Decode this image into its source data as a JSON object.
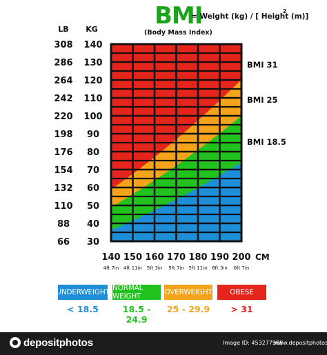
{
  "chart_data": {
    "type": "heatmap",
    "title": "BMI",
    "formula": "= Weight (kg) / [ Height (m)]",
    "formula_exponent": "2",
    "subtitle": "(Body Mass Index)",
    "lb_header": "LB",
    "kg_header": "KG",
    "lb_ticks": [
      "308",
      "286",
      "264",
      "242",
      "220",
      "198",
      "176",
      "154",
      "132",
      "110",
      "88",
      "66"
    ],
    "kg_ticks": [
      "140",
      "130",
      "120",
      "110",
      "100",
      "90",
      "80",
      "70",
      "60",
      "50",
      "40",
      "30"
    ],
    "kg_values": [
      140,
      130,
      120,
      110,
      100,
      90,
      80,
      70,
      60,
      50,
      40,
      30
    ],
    "x_ticks": [
      "140",
      "150",
      "160",
      "170",
      "180",
      "190",
      "200"
    ],
    "x_values": [
      140,
      150,
      160,
      170,
      180,
      190,
      200
    ],
    "x_feet": [
      "4ft 7in",
      "4ft 11in",
      "5ft 3in",
      "5ft 7in",
      "5ft 11in",
      "6ft 3in",
      "6ft 7in"
    ],
    "x_unit": "CM",
    "xlim": [
      140,
      200
    ],
    "ylim": [
      30,
      140
    ],
    "line_labels": [
      {
        "text": "BMI 31",
        "bmi": 31
      },
      {
        "text": "BMI 25",
        "bmi": 25
      },
      {
        "text": "BMI 18.5",
        "bmi": 18.5
      }
    ],
    "categories": [
      {
        "name": "UNDERWEIGHT",
        "range": "< 18.5",
        "color": "#1f8ed8",
        "range_color": "#1f8ed8"
      },
      {
        "name": "NORMAL WEIGHT",
        "range": "18.5 - 24.9",
        "color": "#22c21e",
        "range_color": "#22c21e"
      },
      {
        "name": "OVERWEIGHT",
        "range": "25 - 29.9",
        "color": "#f5a31a",
        "range_color": "#f5a31a"
      },
      {
        "name": "OBESE",
        "range": "> 31",
        "color": "#e5241b",
        "range_color": "#e5241b"
      }
    ]
  },
  "footer": {
    "logo": "depositphotos",
    "image_id": "Image ID: 453277988",
    "site": "www.depositphotos.com"
  }
}
